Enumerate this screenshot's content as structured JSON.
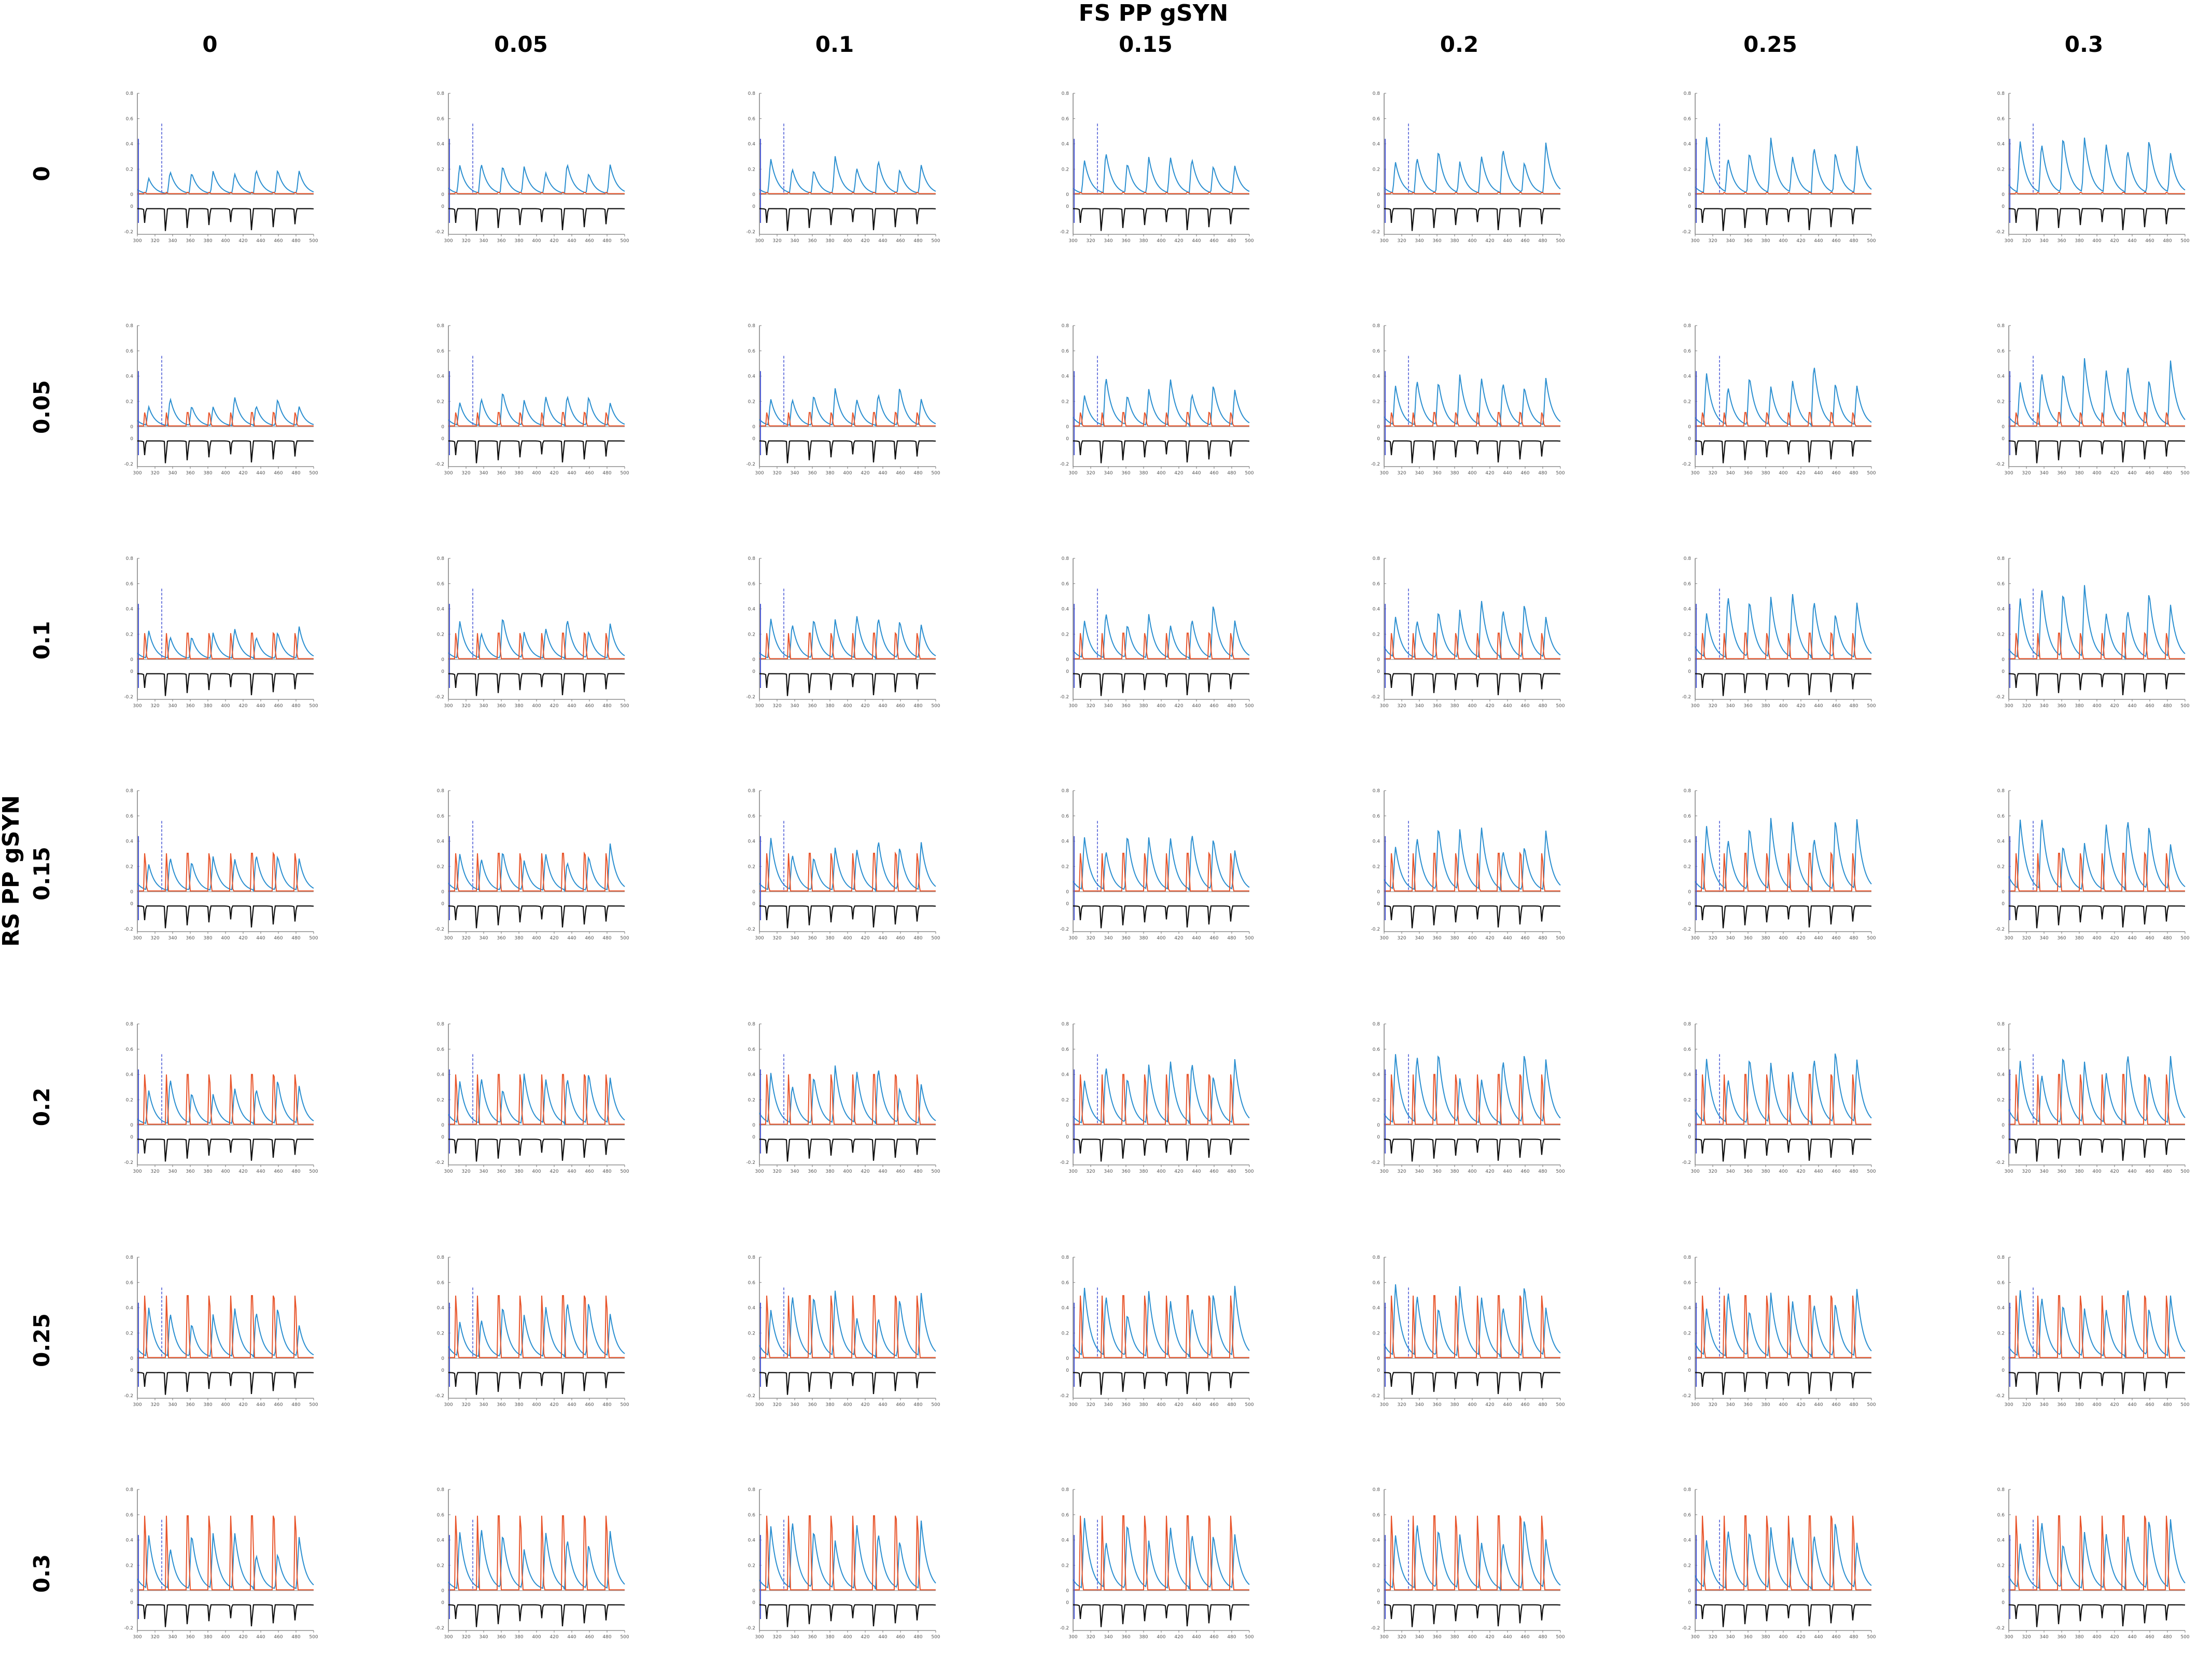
{
  "figure": {
    "x_title": "FS PP gSYN",
    "y_title": "RS PP gSYN",
    "col_values": [
      "0",
      "0.05",
      "0.1",
      "0.15",
      "0.2",
      "0.25",
      "0.3"
    ],
    "row_values": [
      "0",
      "0.05",
      "0.1",
      "0.15",
      "0.2",
      "0.25",
      "0.3"
    ]
  },
  "chart_data": {
    "type": "line",
    "layout": "small-multiples grid (7 rows x 7 columns)",
    "title": "",
    "xlabel": "FS PP gSYN",
    "ylabel": "RS PP gSYN",
    "x_ticks": [
      "300",
      "320",
      "340",
      "360",
      "380",
      "400",
      "420",
      "440",
      "460",
      "480",
      "500"
    ],
    "xlim": [
      300,
      500
    ],
    "panel_upper_ylim": [
      0,
      0.8
    ],
    "panel_lower_ylim": [
      -0.2,
      0
    ],
    "grid": false,
    "legend": "none",
    "series": [
      {
        "color": "#2b8fd0",
        "description_shown": "blue trace, periodic peaks ~every 20 ms"
      },
      {
        "color": "#e8542a",
        "description_shown": "orange trace, sharp peaks growing with RS PP gSYN"
      },
      {
        "color": "#111111",
        "description_shown": "black periodic trace below axis"
      },
      {
        "color": "#4d5bd6",
        "description_shown": "purple vertical stimulus markers"
      }
    ],
    "colors": {
      "blue": "#2b8fd0",
      "orange": "#e8542a",
      "black": "#111111",
      "marker": "#4d5bd6"
    }
  }
}
